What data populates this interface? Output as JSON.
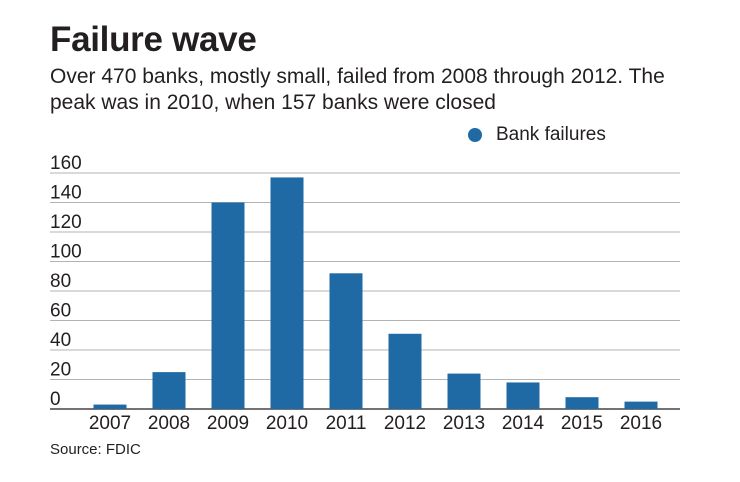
{
  "header": {
    "title": "Failure wave",
    "subtitle": "Over 470 banks, mostly small, failed from 2008 through 2012. The peak was in 2010, when 157 banks were closed"
  },
  "source": "Source: FDIC",
  "colors": {
    "bar": "#1f6aa5",
    "grid": "#b3b3b3",
    "axis": "#231f20"
  },
  "chart_data": {
    "type": "bar",
    "title": "Failure wave",
    "categories": [
      "2007",
      "2008",
      "2009",
      "2010",
      "2011",
      "2012",
      "2013",
      "2014",
      "2015",
      "2016"
    ],
    "series": [
      {
        "name": "Bank failures",
        "values": [
          3,
          25,
          140,
          157,
          92,
          51,
          24,
          18,
          8,
          5
        ]
      }
    ],
    "yticks": [
      0,
      20,
      40,
      60,
      80,
      100,
      120,
      140,
      160
    ],
    "ylim": [
      0,
      160
    ],
    "xlabel": "",
    "ylabel": "",
    "legend": "top-right",
    "grid": true
  }
}
